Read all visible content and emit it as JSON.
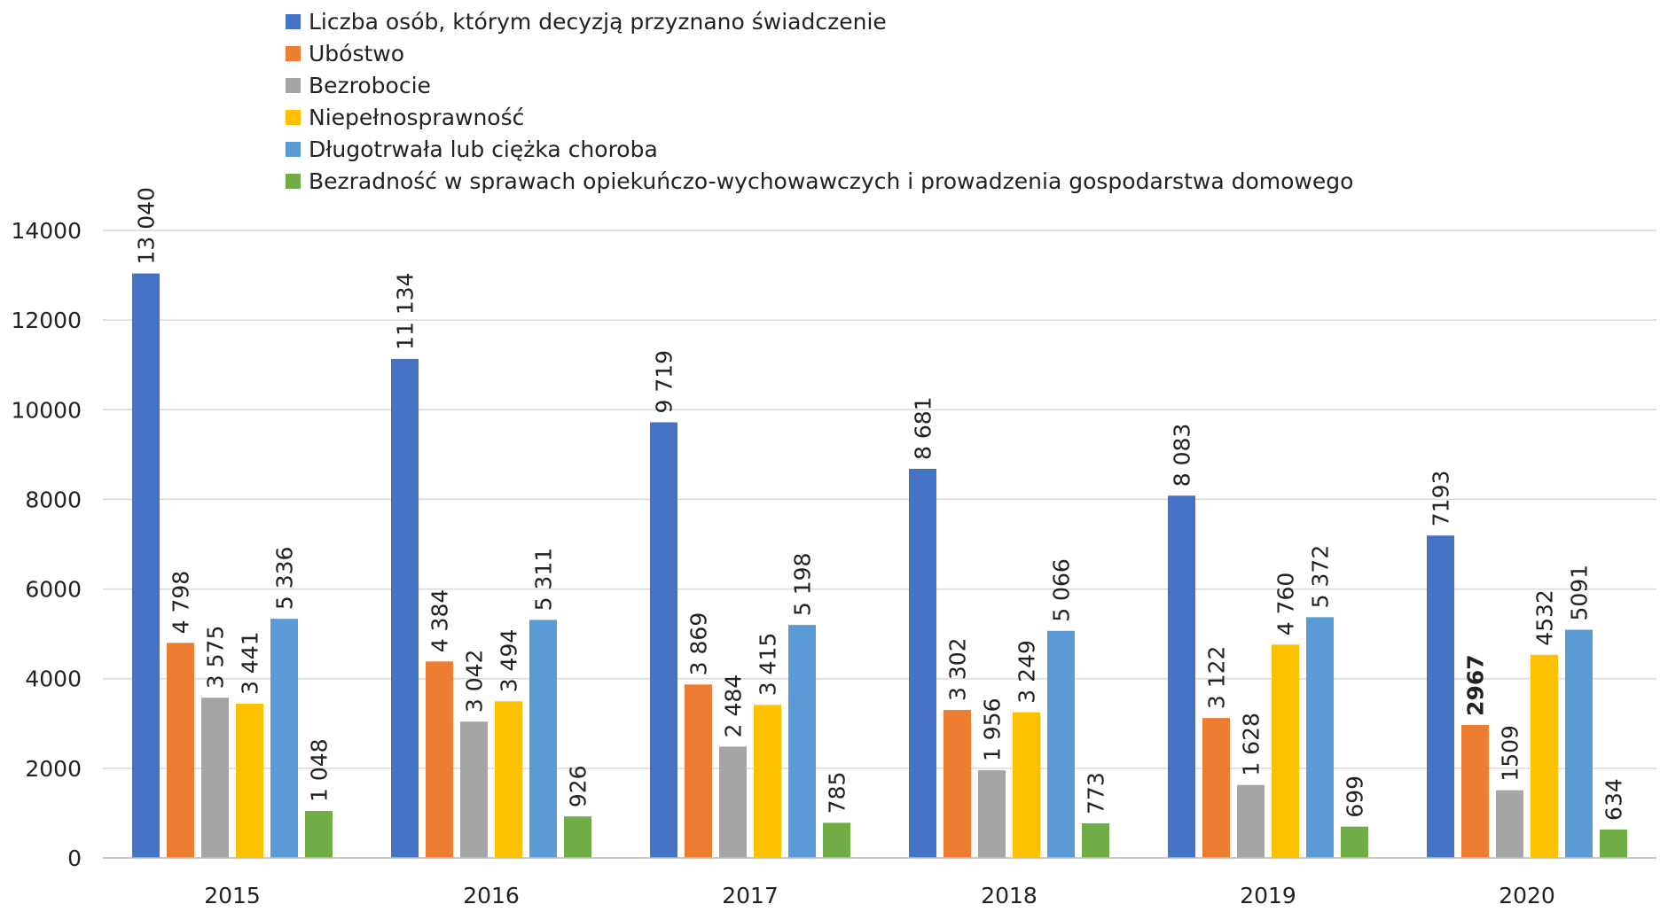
{
  "chart_data": {
    "type": "bar",
    "categories": [
      "2015",
      "2016",
      "2017",
      "2018",
      "2019",
      "2020"
    ],
    "ylim": [
      0,
      14000
    ],
    "yticks": [
      0,
      2000,
      4000,
      6000,
      8000,
      10000,
      12000,
      14000
    ],
    "ytick_labels": [
      "0",
      "2000",
      "4000",
      "6000",
      "8000",
      "10000",
      "12000",
      "14000"
    ],
    "grid": true,
    "legend_position": "top",
    "series": [
      {
        "name": "Liczba osób, którym decyzją przyznano świadczenie",
        "color": "#4472C4",
        "values": [
          13040,
          11134,
          9719,
          8681,
          8083,
          7193
        ],
        "labels": [
          "13 040",
          "11 134",
          "9 719",
          "8 681",
          "8 083",
          "7193"
        ],
        "bold": [
          false,
          false,
          false,
          false,
          false,
          false
        ]
      },
      {
        "name": "Ubóstwo",
        "color": "#ED7D31",
        "values": [
          4798,
          4384,
          3869,
          3302,
          3122,
          2967
        ],
        "labels": [
          "4 798",
          "4 384",
          "3 869",
          "3 302",
          "3 122",
          "2967"
        ],
        "bold": [
          false,
          false,
          false,
          false,
          false,
          true
        ]
      },
      {
        "name": "Bezrobocie",
        "color": "#A5A5A5",
        "values": [
          3575,
          3042,
          2484,
          1956,
          1628,
          1509
        ],
        "labels": [
          "3 575",
          "3 042",
          "2 484",
          "1 956",
          "1 628",
          "1509"
        ],
        "bold": [
          false,
          false,
          false,
          false,
          false,
          false
        ]
      },
      {
        "name": "Niepełnosprawność",
        "color": "#FFC000",
        "values": [
          3441,
          3494,
          3415,
          3249,
          4760,
          4532
        ],
        "labels": [
          "3 441",
          "3 494",
          "3 415",
          "3 249",
          "4 760",
          "4532"
        ],
        "bold": [
          false,
          false,
          false,
          false,
          false,
          false
        ]
      },
      {
        "name": "Długotrwała lub ciężka choroba",
        "color": "#5B9BD5",
        "values": [
          5336,
          5311,
          5198,
          5066,
          5372,
          5091
        ],
        "labels": [
          "5 336",
          "5 311",
          "5 198",
          "5 066",
          "5 372",
          "5091"
        ],
        "bold": [
          false,
          false,
          false,
          false,
          false,
          false
        ]
      },
      {
        "name": "Bezradność w sprawach opiekuńczo-wychowawczych i prowadzenia gospodarstwa domowego",
        "color": "#70AD47",
        "values": [
          1048,
          926,
          785,
          773,
          699,
          634
        ],
        "labels": [
          "1 048",
          "926",
          "785",
          "773",
          "699",
          "634"
        ],
        "bold": [
          false,
          false,
          false,
          false,
          false,
          false
        ]
      }
    ]
  }
}
